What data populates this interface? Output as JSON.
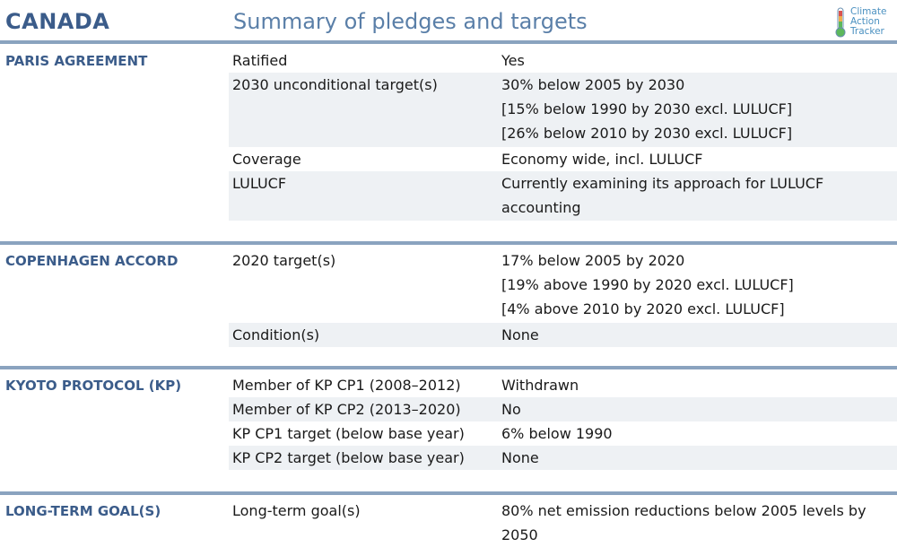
{
  "header": {
    "country": "CANADA",
    "subtitle": "Summary of pledges and targets",
    "logo": {
      "line1": "Climate",
      "line2": "Action",
      "line3": "Tracker",
      "icon": "thermometer-icon"
    }
  },
  "colors": {
    "title": "#3b5c8a",
    "subtitle": "#5a7fa8",
    "rule": "#8aa3bf",
    "row_shade": "#eef1f4",
    "logo_text": "#4a90c0"
  },
  "sections": [
    {
      "title": "PARIS AGREEMENT",
      "rows": [
        {
          "label": "Ratified",
          "values": [
            "Yes"
          ]
        },
        {
          "label": "2030 unconditional target(s)",
          "values": [
            "30% below 2005 by 2030",
            "[15% below 1990 by 2030 excl. LULUCF]",
            "[26% below 2010 by 2030 excl. LULUCF]"
          ]
        },
        {
          "label": "Coverage",
          "values": [
            "Economy wide, incl. LULUCF"
          ]
        },
        {
          "label": "LULUCF",
          "values": [
            "Currently examining its approach for LULUCF",
            "accounting"
          ]
        }
      ]
    },
    {
      "title": "COPENHAGEN ACCORD",
      "rows": [
        {
          "label": "2020 target(s)",
          "values": [
            "17% below 2005 by 2020",
            "[19% above 1990 by 2020 excl. LULUCF]",
            "[4% above 2010 by 2020 excl. LULUCF]"
          ]
        },
        {
          "label": "Condition(s)",
          "values": [
            "None"
          ]
        }
      ]
    },
    {
      "title": "KYOTO PROTOCOL (KP)",
      "rows": [
        {
          "label": "Member of KP CP1 (2008–2012)",
          "values": [
            "Withdrawn"
          ]
        },
        {
          "label": "Member of KP CP2 (2013–2020)",
          "values": [
            "No"
          ]
        },
        {
          "label": "KP CP1 target (below base year)",
          "values": [
            "6% below 1990"
          ]
        },
        {
          "label": "KP CP2 target (below base year)",
          "values": [
            "None"
          ]
        }
      ]
    },
    {
      "title": "LONG-TERM GOAL(S)",
      "rows": [
        {
          "label": "Long-term goal(s)",
          "values": [
            "80% net emission reductions below 2005 levels by",
            "2050"
          ]
        }
      ]
    }
  ]
}
